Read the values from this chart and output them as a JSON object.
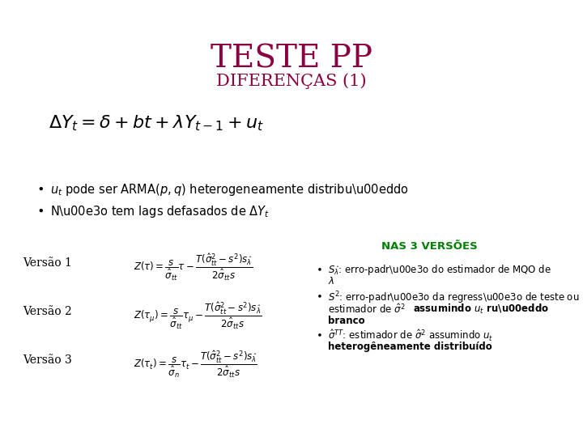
{
  "title": "TESTE PP",
  "subtitle": "DIFERENÇAS (1)",
  "title_color": "#8B0040",
  "subtitle_color": "#8B0040",
  "background_color": "#FFFFFF",
  "bullet1a": "$u_t$",
  "bullet1b": " pode ser ARMA(",
  "bullet1c": "$p,q$",
  "bullet1d": ") heterogeneamente distribuído",
  "bullet2a": "Não tem lags defasados de ",
  "bullet2b": "$\\Delta Y_t$",
  "nas3_label": "NAS 3 VERSÕES",
  "nas3_color": "#008000",
  "text_color": "#000000",
  "versao_color": "#000000",
  "fig_width": 7.2,
  "fig_height": 5.4,
  "dpi": 100
}
